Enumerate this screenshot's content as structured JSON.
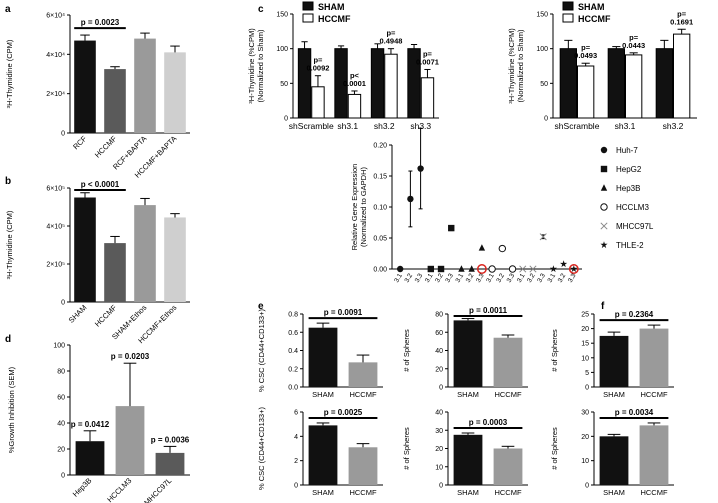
{
  "colors": {
    "black": "#111111",
    "dark": "#5a5a5a",
    "gray": "#9a9a9a",
    "light": "#cfcfcf",
    "white": "#ffffff",
    "red": "#d9231d"
  },
  "chart_data": [
    {
      "id": "a",
      "panel_label": "a",
      "type": "bar",
      "ylabel": "³H-Thymidine (CPM)",
      "ylim": [
        0,
        60000
      ],
      "ticks": [
        0,
        20000,
        40000,
        60000
      ],
      "tick_labels": [
        "0",
        "2×10⁴",
        "4×10⁴",
        "6×10⁴"
      ],
      "categories": [
        "RCF",
        "HCCMF",
        "RCF+BAPTA",
        "HCCMF+BAPTA"
      ],
      "values": [
        47000,
        32500,
        48000,
        41000
      ],
      "errors": [
        2800,
        1200,
        2800,
        3200
      ],
      "colors": [
        "black",
        "dark",
        "gray",
        "light"
      ],
      "annotations": [
        {
          "text": "p = 0.0023",
          "from": 0,
          "to": 1
        }
      ]
    },
    {
      "id": "b",
      "panel_label": "b",
      "type": "bar",
      "ylabel": "³H-Thymidine (CPM)",
      "ylim": [
        0,
        600000
      ],
      "ticks": [
        0,
        200000,
        400000,
        600000
      ],
      "tick_labels": [
        "0",
        "2×10⁵",
        "4×10⁵",
        "6×10⁵"
      ],
      "categories": [
        "SHAM",
        "HCCMF",
        "SHAM+Ethos",
        "HCCMF+Ethos"
      ],
      "values": [
        550000,
        310000,
        510000,
        445000
      ],
      "errors": [
        25000,
        35000,
        35000,
        20000
      ],
      "colors": [
        "black",
        "dark",
        "gray",
        "light"
      ],
      "annotations": [
        {
          "text": "p < 0.0001",
          "from": 0,
          "to": 1
        }
      ]
    },
    {
      "id": "c1",
      "panel_label": "c",
      "type": "grouped-bar",
      "ylabel": "³H-Thymidine (%CPM)",
      "ylabel2": "(Normalized to Sham)",
      "ylim": [
        0,
        150
      ],
      "ticks": [
        0,
        50,
        100,
        150
      ],
      "tick_labels": [
        "0",
        "50",
        "100",
        "150"
      ],
      "categories": [
        "shScramble",
        "sh3.1",
        "sh3.2",
        "sh3.3"
      ],
      "series": [
        {
          "name": "SHAM",
          "fill": "black",
          "values": [
            100,
            100,
            100,
            100
          ],
          "errors": [
            10,
            4,
            7,
            6
          ]
        },
        {
          "name": "HCCMF",
          "fill": "white",
          "values": [
            45,
            34,
            92,
            58
          ],
          "errors": [
            16,
            5,
            8,
            12
          ]
        }
      ],
      "pvalues": [
        "p=\n0.0092",
        "p<\n0.0001",
        "p=\n0.4948",
        "p=\n0.0071"
      ],
      "legend": [
        "SHAM",
        "HCCMF"
      ]
    },
    {
      "id": "c2",
      "panel_label": "",
      "type": "grouped-bar",
      "ylabel": "³H-Thymidine (%CPM)",
      "ylabel2": "(Normalized to Sham)",
      "ylim": [
        0,
        150
      ],
      "ticks": [
        0,
        50,
        100,
        150
      ],
      "tick_labels": [
        "0",
        "50",
        "100",
        "150"
      ],
      "categories": [
        "shScramble",
        "sh3.1",
        "sh3.2"
      ],
      "series": [
        {
          "name": "SHAM",
          "fill": "black",
          "values": [
            100,
            100,
            100
          ],
          "errors": [
            12,
            3,
            12
          ]
        },
        {
          "name": "HCCMF",
          "fill": "white",
          "values": [
            75,
            91,
            121
          ],
          "errors": [
            4,
            3,
            7
          ]
        }
      ],
      "pvalues": [
        "p=\n0.0493",
        "p=\n0.0443",
        "p=\n0.1691"
      ],
      "legend": [
        "SHAM",
        "HCCMF"
      ]
    },
    {
      "id": "c3",
      "panel_label": "",
      "type": "scatter",
      "ylabel": "Relative  Gene Expression",
      "ylabel2": "(Normalized to GAPDH)",
      "ylim": [
        0,
        0.2
      ],
      "ticks": [
        0,
        0.05,
        0.1,
        0.15,
        0.2
      ],
      "tick_labels": [
        "0.00",
        "0.05",
        "0.10",
        "0.15",
        "0.20"
      ],
      "groups": [
        {
          "name": "Huh-7",
          "marker": "circle",
          "tick_labels": [
            "3.1",
            "3.2",
            "3.3"
          ],
          "values": [
            0.0,
            0.113,
            0.162
          ],
          "errors": [
            0,
            0.045,
            0.065
          ],
          "red": []
        },
        {
          "name": "HepG2",
          "marker": "square",
          "tick_labels": [
            "3.1",
            "3.2",
            "3.3"
          ],
          "values": [
            0.0,
            0.0,
            0.066
          ],
          "errors": [
            0,
            0,
            0.004
          ],
          "red": []
        },
        {
          "name": "Hep3B",
          "marker": "triangle",
          "tick_labels": [
            "3.1",
            "3.2",
            "3.3"
          ],
          "values": [
            0.0,
            0.0,
            0.034
          ],
          "errors": [
            0,
            0,
            0
          ],
          "red": [
            2
          ]
        },
        {
          "name": "HCCLM3",
          "marker": "open-circle",
          "tick_labels": [
            "3.1",
            "3.2",
            "3.3"
          ],
          "values": [
            0.0,
            0.033,
            0.0
          ],
          "errors": [
            0,
            0.004,
            0
          ],
          "red": []
        },
        {
          "name": "MHCC97L",
          "marker": "x",
          "tick_labels": [
            "3.1",
            "3.2",
            "3.3"
          ],
          "values": [
            0.0,
            0.0,
            0.052
          ],
          "errors": [
            0,
            0,
            0.003
          ],
          "red": []
        },
        {
          "name": "THLE-2",
          "marker": "star",
          "tick_labels": [
            "3.1",
            "3.2",
            "3.3"
          ],
          "values": [
            0.0,
            0.008,
            0.0
          ],
          "errors": [
            0,
            0,
            0
          ],
          "red": [
            2
          ]
        }
      ],
      "legend": [
        "Huh-7",
        "HepG2",
        "Hep3B",
        "HCCLM3",
        "MHCC97L",
        "THLE-2"
      ]
    },
    {
      "id": "d",
      "panel_label": "d",
      "type": "bar",
      "ylabel": "%Growth  Inhibition (SEM)",
      "ylim": [
        0,
        100
      ],
      "ticks": [
        0,
        20,
        40,
        60,
        80,
        100
      ],
      "tick_labels": [
        "0",
        "20",
        "40",
        "60",
        "80",
        "100"
      ],
      "categories": [
        "Hep3B",
        "HCCLM3",
        "MHCC97L"
      ],
      "values": [
        26,
        53,
        17
      ],
      "errors": [
        8,
        33,
        5
      ],
      "colors": [
        "black",
        "gray",
        "dark"
      ],
      "pvalues": [
        "p = 0.0412",
        "p = 0.0203",
        "p = 0.0036"
      ]
    },
    {
      "id": "e1",
      "panel_label": "e",
      "type": "bar",
      "ylabel": "% CSC (CD44+CD133+)",
      "ylim": [
        0,
        0.8
      ],
      "ticks": [
        0,
        0.2,
        0.4,
        0.6,
        0.8
      ],
      "tick_labels": [
        "0.0",
        "0.2",
        "0.4",
        "0.6",
        "0.8"
      ],
      "categories": [
        "SHAM",
        "HCCMF"
      ],
      "values": [
        0.65,
        0.27
      ],
      "errors": [
        0.05,
        0.08
      ],
      "colors": [
        "black",
        "gray"
      ],
      "annotations": [
        {
          "text": "p = 0.0091",
          "from": 0,
          "to": 1
        }
      ]
    },
    {
      "id": "e2",
      "panel_label": "",
      "type": "bar",
      "ylabel": "# of Spheres",
      "ylim": [
        0,
        80
      ],
      "ticks": [
        0,
        20,
        40,
        60,
        80
      ],
      "tick_labels": [
        "0",
        "20",
        "40",
        "60",
        "80"
      ],
      "categories": [
        "SHAM",
        "HCCMF"
      ],
      "values": [
        73,
        54
      ],
      "errors": [
        2,
        3
      ],
      "colors": [
        "black",
        "gray"
      ],
      "annotations": [
        {
          "text": "p = 0.0011",
          "from": 0,
          "to": 1
        }
      ]
    },
    {
      "id": "f1",
      "panel_label": "f",
      "type": "bar",
      "ylabel": "# of Spheres",
      "ylim": [
        0,
        25
      ],
      "ticks": [
        0,
        5,
        10,
        15,
        20,
        25
      ],
      "tick_labels": [
        "0",
        "5",
        "10",
        "15",
        "20",
        "25"
      ],
      "categories": [
        "SHAM",
        "HCCMF"
      ],
      "values": [
        17.5,
        20
      ],
      "errors": [
        1.3,
        1.2
      ],
      "colors": [
        "black",
        "gray"
      ],
      "annotations": [
        {
          "text": "p = 0.2364",
          "from": 0,
          "to": 1
        }
      ]
    },
    {
      "id": "e3",
      "panel_label": "",
      "type": "bar",
      "ylabel": "% CSC (CD44+CD133+)",
      "ylim": [
        0,
        6
      ],
      "ticks": [
        0,
        2,
        4,
        6
      ],
      "tick_labels": [
        "0",
        "2",
        "4",
        "6"
      ],
      "categories": [
        "SHAM",
        "HCCMF"
      ],
      "values": [
        4.9,
        3.1
      ],
      "errors": [
        0.2,
        0.3
      ],
      "colors": [
        "black",
        "gray"
      ],
      "annotations": [
        {
          "text": "p = 0.0025",
          "from": 0,
          "to": 1
        }
      ]
    },
    {
      "id": "e4",
      "panel_label": "",
      "type": "bar",
      "ylabel": "# of Spheres",
      "ylim": [
        0,
        40
      ],
      "ticks": [
        0,
        10,
        20,
        30,
        40
      ],
      "tick_labels": [
        "0",
        "10",
        "20",
        "30",
        "40"
      ],
      "categories": [
        "SHAM",
        "HCCMF"
      ],
      "values": [
        27.5,
        20
      ],
      "errors": [
        1,
        1.2
      ],
      "colors": [
        "black",
        "gray"
      ],
      "annotations": [
        {
          "text": "p = 0.0003",
          "from": 0,
          "to": 1
        }
      ]
    },
    {
      "id": "f2",
      "panel_label": "",
      "type": "bar",
      "ylabel": "# of Spheres",
      "ylim": [
        0,
        30
      ],
      "ticks": [
        0,
        10,
        20,
        30
      ],
      "tick_labels": [
        "0",
        "10",
        "20",
        "30"
      ],
      "categories": [
        "SHAM",
        "HCCMF"
      ],
      "values": [
        20,
        24.5
      ],
      "errors": [
        0.8,
        1
      ],
      "colors": [
        "black",
        "gray"
      ],
      "annotations": [
        {
          "text": "p = 0.0034",
          "from": 0,
          "to": 1
        }
      ]
    }
  ]
}
